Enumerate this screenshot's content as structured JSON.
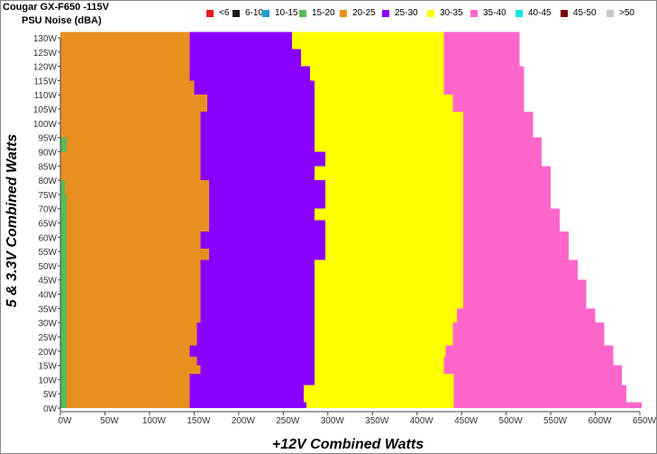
{
  "title": "Cougar GX-F650 -115V",
  "subtitle": "PSU Noise (dBA)",
  "chart_data": {
    "type": "heatmap",
    "xlabel": "+12V Combined Watts",
    "ylabel": "5 & 3.3V Combined Watts",
    "xlim": [
      0,
      650
    ],
    "ylim": [
      0,
      130
    ],
    "x_ticks": [
      "0W",
      "50W",
      "100W",
      "150W",
      "200W",
      "250W",
      "300W",
      "350W",
      "400W",
      "450W",
      "500W",
      "550W",
      "600W",
      "650W"
    ],
    "y_ticks": [
      "0W",
      "5W",
      "10W",
      "15W",
      "20W",
      "25W",
      "30W",
      "35W",
      "40W",
      "45W",
      "50W",
      "55W",
      "60W",
      "65W",
      "70W",
      "75W",
      "80W",
      "85W",
      "90W",
      "95W",
      "100W",
      "105W",
      "110W",
      "115W",
      "120W",
      "125W",
      "130W"
    ],
    "legend": [
      {
        "label": "<6",
        "color": "#e31a1c"
      },
      {
        "label": "6-10",
        "color": "#1a1a1a"
      },
      {
        "label": "10-15",
        "color": "#1f9fd8"
      },
      {
        "label": "15-20",
        "color": "#5cb85c"
      },
      {
        "label": "20-25",
        "color": "#e8901f"
      },
      {
        "label": "25-30",
        "color": "#8a00ff"
      },
      {
        "label": "30-35",
        "color": "#ffff00"
      },
      {
        "label": "35-40",
        "color": "#ff66cc"
      },
      {
        "label": "40-45",
        "color": "#11e5e5"
      },
      {
        "label": "45-50",
        "color": "#7a0000"
      },
      {
        "label": ">50",
        "color": "#c8c8c8"
      }
    ],
    "band_rows": [
      {
        "y": 0,
        "bands": [
          [
            0,
            7,
            "15-20"
          ],
          [
            7,
            145,
            "20-25"
          ],
          [
            145,
            276,
            "25-30"
          ],
          [
            276,
            441,
            "30-35"
          ],
          [
            441,
            652,
            "35-40"
          ]
        ]
      },
      {
        "y": 2,
        "bands": [
          [
            0,
            7,
            "15-20"
          ],
          [
            7,
            145,
            "20-25"
          ],
          [
            145,
            273,
            "25-30"
          ],
          [
            273,
            441,
            "30-35"
          ],
          [
            441,
            635,
            "35-40"
          ]
        ]
      },
      {
        "y": 5,
        "bands": [
          [
            0,
            7,
            "15-20"
          ],
          [
            7,
            145,
            "20-25"
          ],
          [
            145,
            273,
            "25-30"
          ],
          [
            273,
            441,
            "30-35"
          ],
          [
            441,
            635,
            "35-40"
          ]
        ]
      },
      {
        "y": 8,
        "bands": [
          [
            0,
            7,
            "15-20"
          ],
          [
            7,
            145,
            "20-25"
          ],
          [
            145,
            285,
            "25-30"
          ],
          [
            285,
            441,
            "30-35"
          ],
          [
            441,
            630,
            "35-40"
          ]
        ]
      },
      {
        "y": 12,
        "bands": [
          [
            0,
            7,
            "15-20"
          ],
          [
            7,
            157,
            "20-25"
          ],
          [
            157,
            285,
            "25-30"
          ],
          [
            285,
            430,
            "30-35"
          ],
          [
            430,
            630,
            "35-40"
          ]
        ]
      },
      {
        "y": 15,
        "bands": [
          [
            0,
            7,
            "15-20"
          ],
          [
            7,
            153,
            "20-25"
          ],
          [
            153,
            285,
            "25-30"
          ],
          [
            285,
            430,
            "30-35"
          ],
          [
            430,
            620,
            "35-40"
          ]
        ]
      },
      {
        "y": 18,
        "bands": [
          [
            0,
            7,
            "15-20"
          ],
          [
            7,
            145,
            "20-25"
          ],
          [
            145,
            285,
            "25-30"
          ],
          [
            285,
            432,
            "30-35"
          ],
          [
            432,
            620,
            "35-40"
          ]
        ]
      },
      {
        "y": 22,
        "bands": [
          [
            0,
            7,
            "15-20"
          ],
          [
            7,
            153,
            "20-25"
          ],
          [
            153,
            285,
            "25-30"
          ],
          [
            285,
            440,
            "30-35"
          ],
          [
            440,
            610,
            "35-40"
          ]
        ]
      },
      {
        "y": 30,
        "bands": [
          [
            0,
            7,
            "15-20"
          ],
          [
            7,
            157,
            "20-25"
          ],
          [
            157,
            285,
            "25-30"
          ],
          [
            285,
            445,
            "30-35"
          ],
          [
            445,
            600,
            "35-40"
          ]
        ]
      },
      {
        "y": 35,
        "bands": [
          [
            0,
            7,
            "15-20"
          ],
          [
            7,
            157,
            "20-25"
          ],
          [
            157,
            285,
            "25-30"
          ],
          [
            285,
            452,
            "30-35"
          ],
          [
            452,
            590,
            "35-40"
          ]
        ]
      },
      {
        "y": 45,
        "bands": [
          [
            0,
            7,
            "15-20"
          ],
          [
            7,
            157,
            "20-25"
          ],
          [
            157,
            285,
            "25-30"
          ],
          [
            285,
            452,
            "30-35"
          ],
          [
            452,
            580,
            "35-40"
          ]
        ]
      },
      {
        "y": 52,
        "bands": [
          [
            0,
            7,
            "15-20"
          ],
          [
            7,
            167,
            "20-25"
          ],
          [
            167,
            297,
            "25-30"
          ],
          [
            297,
            452,
            "30-35"
          ],
          [
            452,
            570,
            "35-40"
          ]
        ]
      },
      {
        "y": 56,
        "bands": [
          [
            0,
            7,
            "15-20"
          ],
          [
            7,
            157,
            "20-25"
          ],
          [
            157,
            297,
            "25-30"
          ],
          [
            297,
            452,
            "30-35"
          ],
          [
            452,
            570,
            "35-40"
          ]
        ]
      },
      {
        "y": 62,
        "bands": [
          [
            0,
            7,
            "15-20"
          ],
          [
            7,
            167,
            "20-25"
          ],
          [
            167,
            297,
            "25-30"
          ],
          [
            297,
            452,
            "30-35"
          ],
          [
            452,
            560,
            "35-40"
          ]
        ]
      },
      {
        "y": 66,
        "bands": [
          [
            0,
            7,
            "15-20"
          ],
          [
            7,
            167,
            "20-25"
          ],
          [
            167,
            285,
            "25-30"
          ],
          [
            285,
            452,
            "30-35"
          ],
          [
            452,
            560,
            "35-40"
          ]
        ]
      },
      {
        "y": 70,
        "bands": [
          [
            0,
            7,
            "15-20"
          ],
          [
            7,
            167,
            "20-25"
          ],
          [
            167,
            297,
            "25-30"
          ],
          [
            297,
            452,
            "30-35"
          ],
          [
            452,
            550,
            "35-40"
          ]
        ]
      },
      {
        "y": 75,
        "bands": [
          [
            0,
            5,
            "15-20"
          ],
          [
            5,
            167,
            "20-25"
          ],
          [
            167,
            297,
            "25-30"
          ],
          [
            297,
            452,
            "30-35"
          ],
          [
            452,
            550,
            "35-40"
          ]
        ]
      },
      {
        "y": 80,
        "bands": [
          [
            0,
            0,
            "15-20"
          ],
          [
            0,
            157,
            "20-25"
          ],
          [
            157,
            285,
            "25-30"
          ],
          [
            285,
            452,
            "30-35"
          ],
          [
            452,
            550,
            "35-40"
          ]
        ]
      },
      {
        "y": 85,
        "bands": [
          [
            0,
            0,
            "15-20"
          ],
          [
            0,
            157,
            "20-25"
          ],
          [
            157,
            297,
            "25-30"
          ],
          [
            297,
            452,
            "30-35"
          ],
          [
            452,
            540,
            "35-40"
          ]
        ]
      },
      {
        "y": 90,
        "bands": [
          [
            0,
            7,
            "15-20"
          ],
          [
            7,
            157,
            "20-25"
          ],
          [
            157,
            285,
            "25-30"
          ],
          [
            285,
            452,
            "30-35"
          ],
          [
            452,
            540,
            "35-40"
          ]
        ]
      },
      {
        "y": 95,
        "bands": [
          [
            0,
            0,
            "15-20"
          ],
          [
            0,
            157,
            "20-25"
          ],
          [
            157,
            285,
            "25-30"
          ],
          [
            285,
            452,
            "30-35"
          ],
          [
            452,
            530,
            "35-40"
          ]
        ]
      },
      {
        "y": 100,
        "bands": [
          [
            0,
            0,
            "15-20"
          ],
          [
            0,
            157,
            "20-25"
          ],
          [
            157,
            285,
            "25-30"
          ],
          [
            285,
            452,
            "30-35"
          ],
          [
            452,
            530,
            "35-40"
          ]
        ]
      },
      {
        "y": 104,
        "bands": [
          [
            0,
            0,
            "15-20"
          ],
          [
            0,
            165,
            "20-25"
          ],
          [
            165,
            285,
            "25-30"
          ],
          [
            285,
            440,
            "30-35"
          ],
          [
            440,
            520,
            "35-40"
          ]
        ]
      },
      {
        "y": 110,
        "bands": [
          [
            0,
            0,
            "15-20"
          ],
          [
            0,
            150,
            "20-25"
          ],
          [
            150,
            285,
            "25-30"
          ],
          [
            285,
            430,
            "30-35"
          ],
          [
            430,
            520,
            "35-40"
          ]
        ]
      },
      {
        "y": 115,
        "bands": [
          [
            0,
            0,
            "15-20"
          ],
          [
            0,
            145,
            "20-25"
          ],
          [
            145,
            280,
            "25-30"
          ],
          [
            280,
            430,
            "30-35"
          ],
          [
            430,
            520,
            "35-40"
          ]
        ]
      },
      {
        "y": 120,
        "bands": [
          [
            0,
            0,
            "15-20"
          ],
          [
            0,
            145,
            "20-25"
          ],
          [
            145,
            270,
            "25-30"
          ],
          [
            270,
            430,
            "30-35"
          ],
          [
            430,
            515,
            "35-40"
          ]
        ]
      },
      {
        "y": 126,
        "bands": [
          [
            0,
            0,
            "15-20"
          ],
          [
            0,
            145,
            "20-25"
          ],
          [
            145,
            260,
            "25-30"
          ],
          [
            260,
            430,
            "30-35"
          ],
          [
            430,
            515,
            "35-40"
          ]
        ]
      }
    ]
  }
}
